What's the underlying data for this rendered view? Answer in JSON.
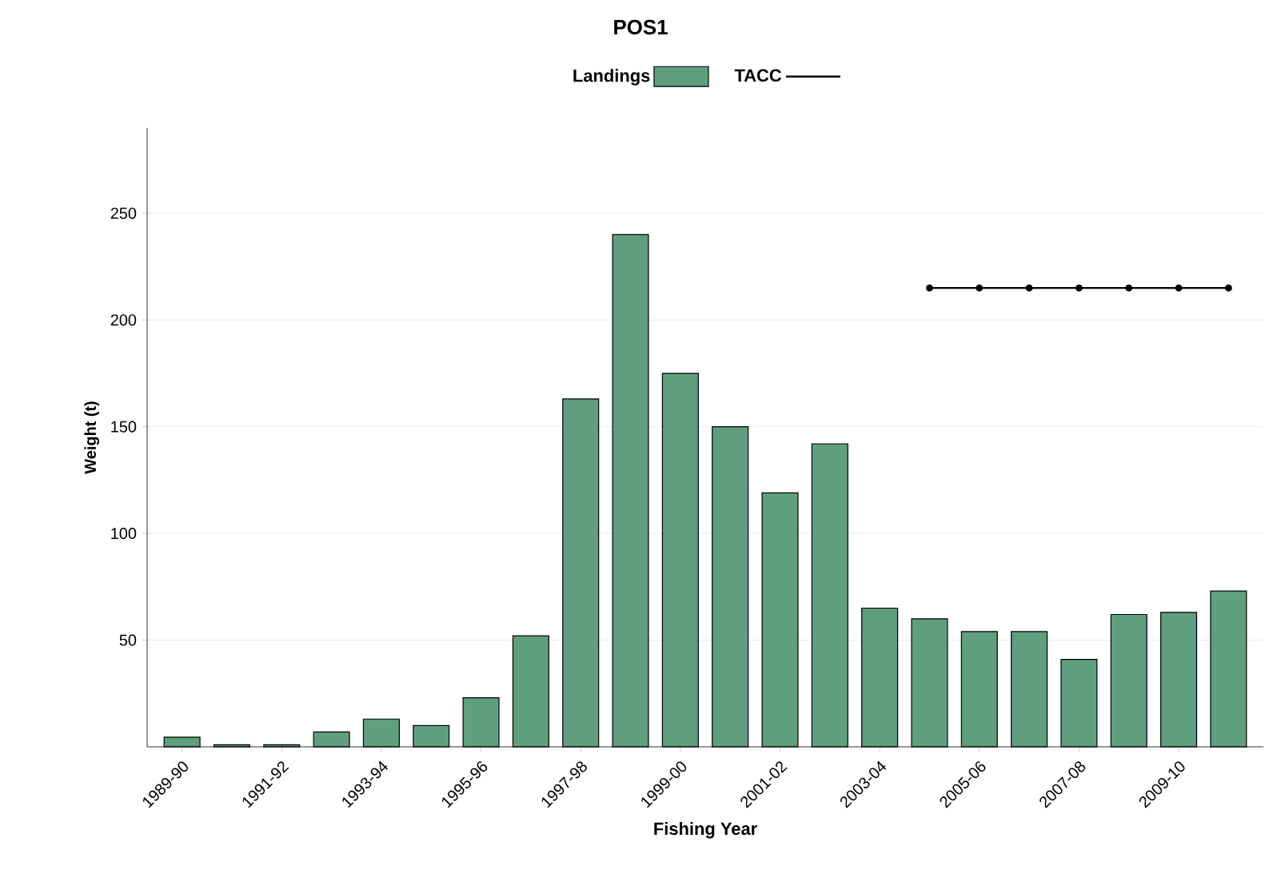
{
  "chart_data": {
    "type": "bar",
    "title": "POS1",
    "xlabel": "Fishing Year",
    "ylabel": "Weight (t)",
    "categories": [
      "1989-90",
      null,
      "1991-92",
      null,
      "1993-94",
      null,
      "1995-96",
      null,
      "1997-98",
      null,
      "1999-00",
      null,
      "2001-02",
      null,
      "2003-04",
      null,
      "2005-06",
      null,
      "2007-08",
      null,
      "2009-10",
      null
    ],
    "series": [
      {
        "name": "Landings",
        "color": "#5f9e7f",
        "values": [
          4.5,
          1,
          1,
          7,
          13,
          10,
          23,
          52,
          163,
          240,
          175,
          150,
          119,
          142,
          65,
          60,
          54,
          54,
          41,
          62,
          63,
          73
        ]
      },
      {
        "name": "TACC",
        "type": "line",
        "color": "#000000",
        "marker": "circle",
        "values": [
          null,
          null,
          null,
          null,
          null,
          null,
          null,
          null,
          null,
          null,
          null,
          null,
          null,
          null,
          null,
          215,
          215,
          215,
          215,
          215,
          215,
          215
        ]
      }
    ],
    "ylim": [
      0,
      290
    ],
    "yticks": [
      50,
      100,
      150,
      200,
      250
    ],
    "grid": "y",
    "legend": "top"
  }
}
